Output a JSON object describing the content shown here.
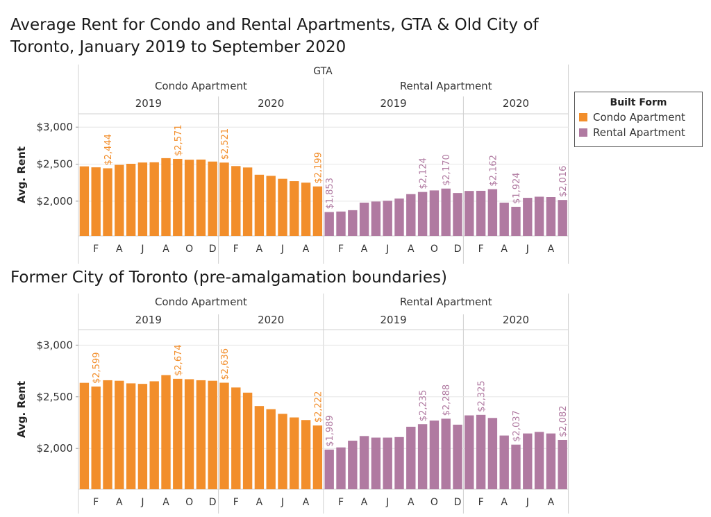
{
  "title": "Average Rent for Condo and Rental Apartments, GTA & Old City of Toronto, January 2019 to September 2020",
  "legend": {
    "title": "Built Form",
    "items": [
      {
        "label": "Condo Apartment",
        "color": "#f28e2b"
      },
      {
        "label": "Rental Apartment",
        "color": "#b07aa1"
      }
    ]
  },
  "chart_data": [
    {
      "type": "bar",
      "title": "",
      "panel_label": "GTA",
      "ylabel": "Avg. Rent",
      "ylim": [
        1530,
        3180
      ],
      "yticks": [
        2000,
        2500,
        3000
      ],
      "ytick_labels": [
        "$2,000",
        "$2,500",
        "$3,000"
      ],
      "groups": [
        {
          "label": "Condo Apartment",
          "color": "#f28e2b",
          "years": [
            {
              "year": "2019",
              "values": [
                2470,
                2457,
                2444,
                2490,
                2505,
                2522,
                2525,
                2581,
                2571,
                2560,
                2562,
                2535
              ]
            },
            {
              "year": "2020",
              "values": [
                2521,
                2474,
                2455,
                2357,
                2342,
                2302,
                2270,
                2250,
                2199
              ]
            }
          ]
        },
        {
          "label": "Rental Apartment",
          "color": "#b07aa1",
          "years": [
            {
              "year": "2019",
              "values": [
                1853,
                1860,
                1878,
                1980,
                1995,
                2005,
                2035,
                2095,
                2124,
                2145,
                2170,
                2110
              ]
            },
            {
              "year": "2020",
              "values": [
                2138,
                2140,
                2162,
                1980,
                1924,
                2045,
                2060,
                2055,
                2016
              ]
            }
          ]
        }
      ],
      "data_labels": [
        {
          "group": 0,
          "year": 0,
          "index": 2,
          "text": "$2,444"
        },
        {
          "group": 0,
          "year": 0,
          "index": 8,
          "text": "$2,571"
        },
        {
          "group": 0,
          "year": 1,
          "index": 0,
          "text": "$2,521"
        },
        {
          "group": 0,
          "year": 1,
          "index": 8,
          "text": "$2,199"
        },
        {
          "group": 1,
          "year": 0,
          "index": 0,
          "text": "$1,853"
        },
        {
          "group": 1,
          "year": 0,
          "index": 8,
          "text": "$2,124"
        },
        {
          "group": 1,
          "year": 0,
          "index": 10,
          "text": "$2,170"
        },
        {
          "group": 1,
          "year": 1,
          "index": 2,
          "text": "$2,162"
        },
        {
          "group": 1,
          "year": 1,
          "index": 4,
          "text": "$1,924"
        },
        {
          "group": 1,
          "year": 1,
          "index": 8,
          "text": "$2,016"
        }
      ],
      "x_ticks": {
        "2019": [
          {
            "index": 1,
            "label": "F"
          },
          {
            "index": 3,
            "label": "A"
          },
          {
            "index": 5,
            "label": "J"
          },
          {
            "index": 7,
            "label": "A"
          },
          {
            "index": 9,
            "label": "O"
          },
          {
            "index": 11,
            "label": "D"
          }
        ],
        "2020": [
          {
            "index": 1,
            "label": "F"
          },
          {
            "index": 3,
            "label": "A"
          },
          {
            "index": 5,
            "label": "J"
          },
          {
            "index": 7,
            "label": "A"
          }
        ]
      }
    },
    {
      "type": "bar",
      "title": "Former City of Toronto (pre-amalgamation boundaries)",
      "ylabel": "Avg. Rent",
      "ylim": [
        1605,
        3150
      ],
      "yticks": [
        2000,
        2500,
        3000
      ],
      "ytick_labels": [
        "$2,000",
        "$2,500",
        "$3,000"
      ],
      "groups": [
        {
          "label": "Condo Apartment",
          "color": "#f28e2b",
          "years": [
            {
              "year": "2019",
              "values": [
                2635,
                2599,
                2660,
                2655,
                2630,
                2625,
                2650,
                2710,
                2674,
                2670,
                2660,
                2655
              ]
            },
            {
              "year": "2020",
              "values": [
                2636,
                2590,
                2540,
                2410,
                2380,
                2335,
                2300,
                2275,
                2222
              ]
            }
          ]
        },
        {
          "label": "Rental Apartment",
          "color": "#b07aa1",
          "years": [
            {
              "year": "2019",
              "values": [
                1989,
                2010,
                2075,
                2120,
                2105,
                2105,
                2110,
                2210,
                2235,
                2270,
                2288,
                2230
              ]
            },
            {
              "year": "2020",
              "values": [
                2320,
                2325,
                2295,
                2125,
                2037,
                2145,
                2160,
                2145,
                2082
              ]
            }
          ]
        }
      ],
      "data_labels": [
        {
          "group": 0,
          "year": 0,
          "index": 1,
          "text": "$2,599"
        },
        {
          "group": 0,
          "year": 0,
          "index": 8,
          "text": "$2,674"
        },
        {
          "group": 0,
          "year": 1,
          "index": 0,
          "text": "$2,636"
        },
        {
          "group": 0,
          "year": 1,
          "index": 8,
          "text": "$2,222"
        },
        {
          "group": 1,
          "year": 0,
          "index": 0,
          "text": "$1,989"
        },
        {
          "group": 1,
          "year": 0,
          "index": 8,
          "text": "$2,235"
        },
        {
          "group": 1,
          "year": 0,
          "index": 10,
          "text": "$2,288"
        },
        {
          "group": 1,
          "year": 1,
          "index": 1,
          "text": "$2,325"
        },
        {
          "group": 1,
          "year": 1,
          "index": 4,
          "text": "$2,037"
        },
        {
          "group": 1,
          "year": 1,
          "index": 8,
          "text": "$2,082"
        }
      ],
      "x_ticks": {
        "2019": [
          {
            "index": 1,
            "label": "F"
          },
          {
            "index": 3,
            "label": "A"
          },
          {
            "index": 5,
            "label": "J"
          },
          {
            "index": 7,
            "label": "A"
          },
          {
            "index": 9,
            "label": "O"
          },
          {
            "index": 11,
            "label": "D"
          }
        ],
        "2020": [
          {
            "index": 1,
            "label": "F"
          },
          {
            "index": 3,
            "label": "A"
          },
          {
            "index": 5,
            "label": "J"
          },
          {
            "index": 7,
            "label": "A"
          }
        ]
      }
    }
  ]
}
